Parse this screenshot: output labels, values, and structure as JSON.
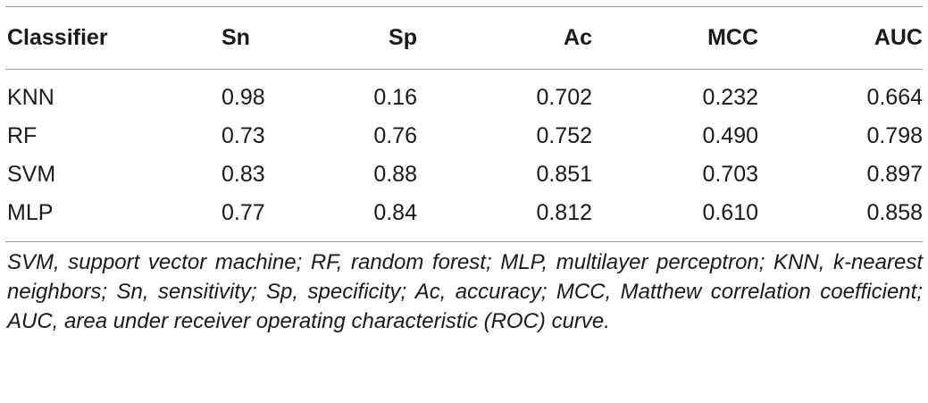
{
  "table": {
    "headers": [
      "Classifier",
      "Sn",
      "Sp",
      "Ac",
      "MCC",
      "AUC"
    ],
    "rows": [
      [
        "KNN",
        "0.98",
        "0.16",
        "0.702",
        "0.232",
        "0.664"
      ],
      [
        "RF",
        "0.73",
        "0.76",
        "0.752",
        "0.490",
        "0.798"
      ],
      [
        "SVM",
        "0.83",
        "0.88",
        "0.851",
        "0.703",
        "0.897"
      ],
      [
        "MLP",
        "0.77",
        "0.84",
        "0.812",
        "0.610",
        "0.858"
      ]
    ],
    "footnote": "SVM, support vector machine; RF, random forest; MLP, multilayer perceptron; KNN, k-nearest neighbors; Sn, sensitivity; Sp, specificity; Ac, accuracy; MCC, Matthew correlation coefficient; AUC, area under receiver operating characteristic (ROC) curve."
  }
}
